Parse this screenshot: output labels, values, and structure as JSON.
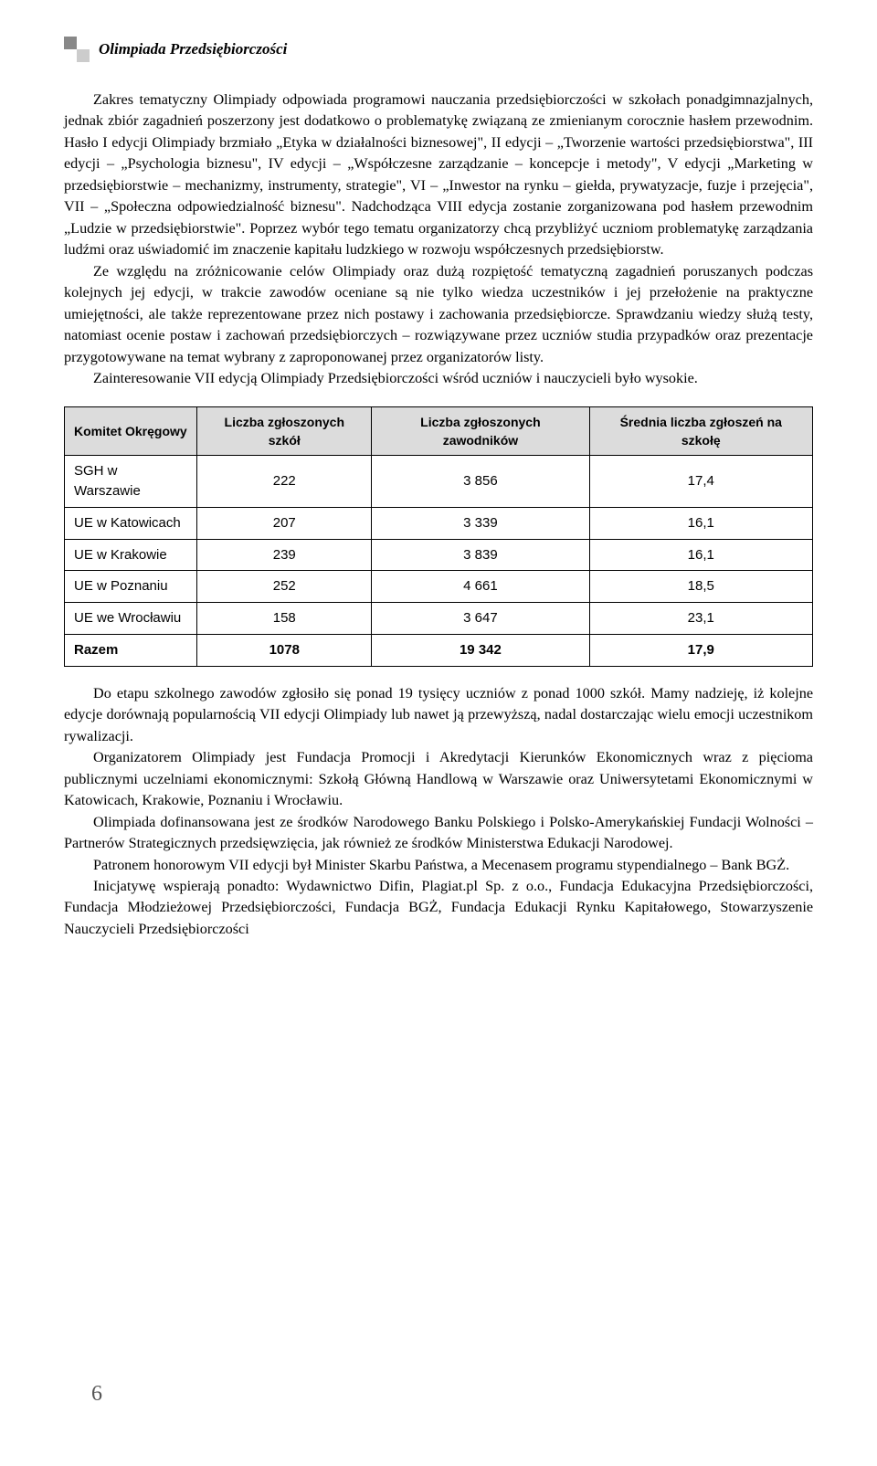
{
  "header": {
    "title": "Olimpiada Przedsiębiorczości"
  },
  "paragraphs": {
    "p1": "Zakres tematyczny Olimpiady odpowiada programowi nauczania przedsiębiorczości w szkołach ponadgimnazjalnych, jednak zbiór zagadnień poszerzony jest dodatkowo o problematykę związaną ze zmienianym corocznie hasłem przewodnim. Hasło I edycji Olimpiady brzmiało „Etyka w działalności biznesowej\", II edycji – „Tworzenie wartości przedsiębiorstwa\", III edycji – „Psychologia biznesu\", IV edycji – „Współczesne zarządzanie – koncepcje i metody\", V edycji „Marketing w przedsiębiorstwie – mechanizmy, instrumenty, strategie\", VI – „Inwestor na rynku – giełda, prywatyzacje, fuzje i przejęcia\", VII – „Społeczna odpowiedzialność biznesu\". Nadchodząca VIII edycja zostanie zorganizowana pod hasłem przewodnim „Ludzie w przedsiębiorstwie\". Poprzez wybór tego tematu organizatorzy chcą przybliżyć uczniom problematykę zarządzania ludźmi oraz uświadomić im znaczenie kapitału ludzkiego w rozwoju współczesnych przedsiębiorstw.",
    "p2": "Ze względu na zróżnicowanie celów Olimpiady oraz dużą rozpiętość tematyczną zagadnień poruszanych podczas kolejnych jej edycji, w trakcie zawodów oceniane są nie tylko wiedza uczestników i jej przełożenie na praktyczne umiejętności, ale także reprezentowane przez nich postawy i zachowania przedsiębiorcze. Sprawdzaniu wiedzy służą testy, natomiast ocenie postaw i zachowań przedsiębiorczych – rozwiązywane przez uczniów studia przypadków oraz prezentacje przygotowywane na temat wybrany z zaproponowanej przez organizatorów listy.",
    "p3": "Zainteresowanie VII edycją Olimpiady Przedsiębiorczości wśród uczniów i nauczycieli było wysokie.",
    "p4": "Do etapu szkolnego zawodów zgłosiło się ponad 19 tysięcy uczniów z ponad 1000 szkół. Mamy nadzieję, iż kolejne edycje dorównają popularnością VII edycji Olimpiady lub nawet ją przewyższą, nadal dostarczając wielu emocji uczestnikom rywalizacji.",
    "p5": "Organizatorem Olimpiady jest Fundacja Promocji i Akredytacji Kierunków Ekonomicznych wraz z pięcioma publicznymi uczelniami ekonomicznymi: Szkołą Główną Handlową w Warszawie oraz Uniwersytetami Ekonomicznymi w Katowicach, Krakowie, Poznaniu i Wrocławiu.",
    "p6": "Olimpiada dofinansowana jest ze środków Narodowego Banku Polskiego i Polsko-Amerykańskiej Fundacji Wolności – Partnerów Strategicznych przedsięwzięcia, jak również ze środków Ministerstwa Edukacji Narodowej.",
    "p7": "Patronem honorowym VII edycji był Minister Skarbu Państwa, a Mecenasem programu stypendialnego – Bank BGŻ.",
    "p8": "Inicjatywę wspierają ponadto: Wydawnictwo Difin, Plagiat.pl Sp. z o.o., Fundacja Edukacyjna Przedsiębiorczości, Fundacja Młodzieżowej Przedsiębiorczości, Fundacja BGŻ, Fundacja Edukacji Rynku Kapitałowego, Stowarzyszenie Nauczycieli Przedsiębiorczości"
  },
  "table": {
    "type": "table",
    "header_bg": "#dcdcdc",
    "border_color": "#000000",
    "columns": [
      "Komitet Okręgowy",
      "Liczba zgłoszonych szkół",
      "Liczba zgłoszonych zawodników",
      "Średnia liczba zgłoszeń na szkołę"
    ],
    "rows": [
      [
        "SGH w Warszawie",
        "222",
        "3 856",
        "17,4"
      ],
      [
        "UE w Katowicach",
        "207",
        "3 339",
        "16,1"
      ],
      [
        "UE w Krakowie",
        "239",
        "3 839",
        "16,1"
      ],
      [
        "UE w Poznaniu",
        "252",
        "4 661",
        "18,5"
      ],
      [
        "UE we Wrocławiu",
        "158",
        "3 647",
        "23,1"
      ],
      [
        "Razem",
        "1078",
        "19 342",
        "17,9"
      ]
    ]
  },
  "page_number": "6"
}
